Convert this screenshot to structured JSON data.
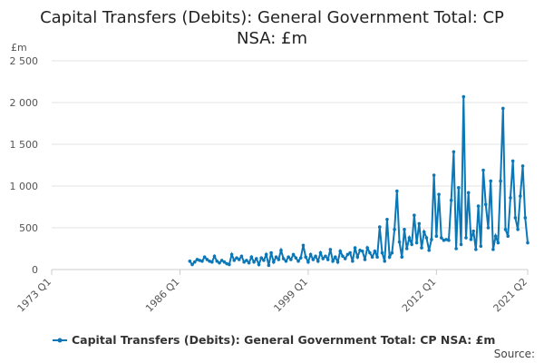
{
  "chart_data": {
    "type": "line",
    "title": "Capital Transfers (Debits): General Government Total: CP NSA: £m",
    "y_label": "£m",
    "source": "Source:",
    "legend": "bottom",
    "grid": true,
    "ylim": [
      0,
      2500
    ],
    "yticks": [
      0,
      500,
      {
        "value": 1000,
        "label": "1 000"
      },
      {
        "value": 1500,
        "label": "1 500"
      },
      {
        "value": 2000,
        "label": "2 000"
      },
      {
        "value": 2500,
        "label": "2 500"
      }
    ],
    "categories": [
      "1973 Q1",
      null,
      null,
      null,
      null,
      null,
      null,
      null,
      null,
      null,
      null,
      null,
      null,
      null,
      null,
      null,
      null,
      null,
      null,
      null,
      null,
      null,
      null,
      null,
      null,
      null,
      null,
      null,
      null,
      null,
      null,
      null,
      null,
      null,
      null,
      null,
      null,
      null,
      null,
      null,
      null,
      null,
      null,
      null,
      null,
      null,
      null,
      null,
      null,
      null,
      null,
      null,
      "1986 Q1",
      null,
      null,
      null,
      null,
      null,
      null,
      null,
      null,
      null,
      null,
      null,
      null,
      null,
      null,
      null,
      null,
      null,
      null,
      null,
      null,
      null,
      null,
      null,
      null,
      null,
      null,
      null,
      null,
      null,
      null,
      null,
      null,
      null,
      null,
      null,
      null,
      null,
      null,
      null,
      null,
      null,
      null,
      null,
      null,
      null,
      null,
      null,
      null,
      null,
      null,
      null,
      "1999 Q1",
      null,
      null,
      null,
      null,
      null,
      null,
      null,
      null,
      null,
      null,
      null,
      null,
      null,
      null,
      null,
      null,
      null,
      null,
      null,
      null,
      null,
      null,
      null,
      null,
      null,
      null,
      null,
      null,
      null,
      null,
      null,
      null,
      null,
      null,
      null,
      null,
      null,
      null,
      null,
      null,
      null,
      null,
      null,
      null,
      null,
      null,
      null,
      null,
      null,
      null,
      null,
      "2012 Q1",
      null,
      null,
      null,
      null,
      null,
      null,
      null,
      null,
      null,
      null,
      null,
      null,
      null,
      null,
      null,
      null,
      null,
      null,
      null,
      null,
      null,
      null,
      null,
      null,
      null,
      null,
      null,
      null,
      null,
      null,
      null,
      null,
      null,
      null,
      null,
      null,
      "2021 Q2"
    ],
    "series": [
      {
        "name": "Capital Transfers (Debits): General Government Total: CP NSA: £m",
        "color": "#0b77b7",
        "values": [
          null,
          null,
          null,
          null,
          null,
          null,
          null,
          null,
          null,
          null,
          null,
          null,
          null,
          null,
          null,
          null,
          null,
          null,
          null,
          null,
          null,
          null,
          null,
          null,
          null,
          null,
          null,
          null,
          null,
          null,
          null,
          null,
          null,
          null,
          null,
          null,
          null,
          null,
          null,
          null,
          null,
          null,
          null,
          null,
          null,
          null,
          null,
          null,
          null,
          null,
          null,
          null,
          null,
          null,
          null,
          null,
          100,
          60,
          90,
          120,
          110,
          100,
          150,
          120,
          100,
          90,
          160,
          100,
          80,
          110,
          90,
          70,
          60,
          180,
          110,
          140,
          120,
          160,
          90,
          110,
          80,
          150,
          90,
          130,
          60,
          140,
          110,
          180,
          50,
          200,
          90,
          150,
          120,
          230,
          130,
          100,
          150,
          120,
          180,
          140,
          100,
          140,
          290,
          150,
          90,
          180,
          120,
          160,
          100,
          200,
          130,
          160,
          120,
          240,
          100,
          150,
          90,
          220,
          160,
          130,
          180,
          200,
          100,
          260,
          150,
          230,
          220,
          120,
          260,
          200,
          150,
          220,
          150,
          510,
          200,
          100,
          600,
          150,
          200,
          480,
          940,
          330,
          150,
          480,
          250,
          380,
          300,
          650,
          320,
          550,
          260,
          450,
          380,
          230,
          360,
          1130,
          400,
          900,
          380,
          350,
          360,
          350,
          830,
          1410,
          250,
          980,
          300,
          2070,
          380,
          920,
          360,
          460,
          240,
          760,
          280,
          1190,
          780,
          500,
          1060,
          240,
          400,
          320,
          1060,
          1930,
          480,
          400,
          860,
          1300,
          620,
          480,
          880,
          1240,
          620,
          320
        ]
      }
    ]
  }
}
